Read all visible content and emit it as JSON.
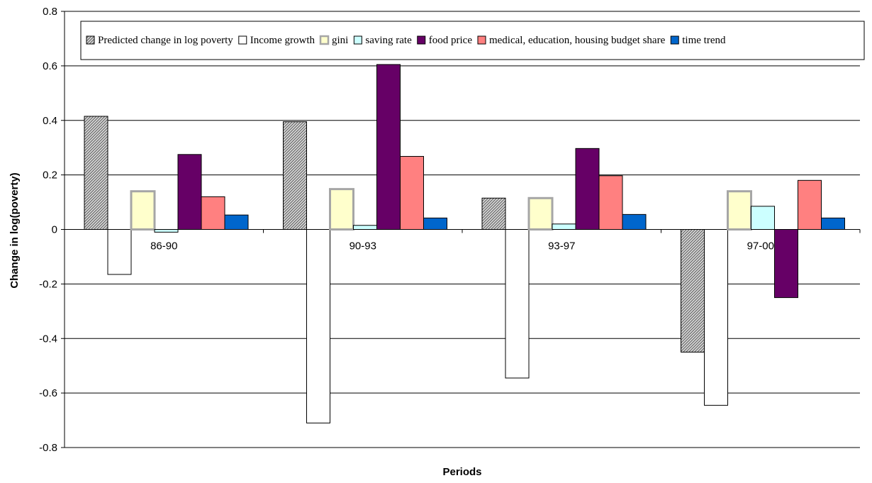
{
  "chart_data": {
    "type": "bar",
    "xlabel": "Periods",
    "ylabel": "Change in log(poverty)",
    "ylim": [
      -0.8,
      0.8
    ],
    "yticks": [
      "0.8",
      "0.6",
      "0.4",
      "0.2",
      "0",
      "-0.2",
      "-0.4",
      "-0.6",
      "-0.8"
    ],
    "ytick_values": [
      0.8,
      0.6,
      0.4,
      0.2,
      0,
      -0.2,
      -0.4,
      -0.6,
      -0.8
    ],
    "categories": [
      "86-90",
      "90-93",
      "93-97",
      "97-00"
    ],
    "grid": "horizontal",
    "legend_position": "top",
    "series": [
      {
        "name": "Predicted change in log poverty",
        "values": [
          0.415,
          0.395,
          0.115,
          -0.45
        ],
        "color": "#a6a6a6",
        "pattern": "hatch"
      },
      {
        "name": "Income growth",
        "values": [
          -0.165,
          -0.71,
          -0.545,
          -0.645
        ],
        "color": "#ffffff"
      },
      {
        "name": "gini",
        "values": [
          0.14,
          0.148,
          0.115,
          0.14
        ],
        "color": "#ffffcc",
        "stroke": "#a6a6a6"
      },
      {
        "name": "saving rate",
        "values": [
          -0.01,
          0.015,
          0.02,
          0.085
        ],
        "color": "#ccffff"
      },
      {
        "name": "food price",
        "values": [
          0.275,
          0.605,
          0.297,
          -0.25
        ],
        "color": "#660066"
      },
      {
        "name": "medical, education, housing budget share",
        "values": [
          0.12,
          0.268,
          0.197,
          0.18
        ],
        "color": "#ff8080"
      },
      {
        "name": "time trend",
        "values": [
          0.053,
          0.042,
          0.055,
          0.042
        ],
        "color": "#0066cc"
      }
    ]
  }
}
